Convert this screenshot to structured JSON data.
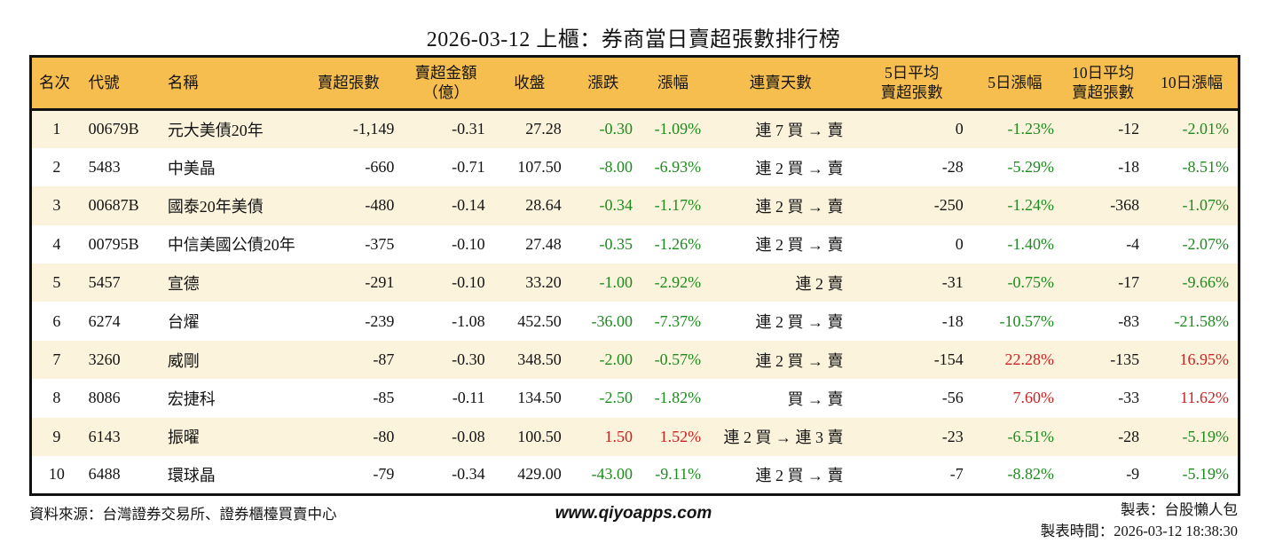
{
  "title": "2026-03-12 上櫃：券商當日賣超張數排行榜",
  "colors": {
    "header_bg": "#F6BE4E",
    "row_stripe": "#FCF3DC",
    "up_red": "#CC2222",
    "down_green": "#1E8B1E",
    "border": "#111111"
  },
  "table": {
    "headers": [
      "名次",
      "代號",
      "名稱",
      "賣超張數",
      "賣超金額\n（億）",
      "收盤",
      "漲跌",
      "漲幅",
      "連賣天數",
      "5日平均\n賣超張數",
      "5日漲幅",
      "10日平均\n賣超張數",
      "10日漲幅"
    ],
    "rows": [
      {
        "rank": "1",
        "code": "00679B",
        "name": "元大美債20年",
        "net_sell": "-1,149",
        "amount": "-0.31",
        "close": "27.28",
        "change": "-0.30",
        "change_pct": "-1.09%",
        "chg_dir": "down",
        "streak": "連 7 買 → 賣",
        "avg5": "0",
        "pct5": "-1.23%",
        "d5_dir": "down",
        "avg10": "-12",
        "pct10": "-2.01%",
        "d10_dir": "down"
      },
      {
        "rank": "2",
        "code": "5483",
        "name": "中美晶",
        "net_sell": "-660",
        "amount": "-0.71",
        "close": "107.50",
        "change": "-8.00",
        "change_pct": "-6.93%",
        "chg_dir": "down",
        "streak": "連 2 買 → 賣",
        "avg5": "-28",
        "pct5": "-5.29%",
        "d5_dir": "down",
        "avg10": "-18",
        "pct10": "-8.51%",
        "d10_dir": "down"
      },
      {
        "rank": "3",
        "code": "00687B",
        "name": "國泰20年美債",
        "net_sell": "-480",
        "amount": "-0.14",
        "close": "28.64",
        "change": "-0.34",
        "change_pct": "-1.17%",
        "chg_dir": "down",
        "streak": "連 2 買 → 賣",
        "avg5": "-250",
        "pct5": "-1.24%",
        "d5_dir": "down",
        "avg10": "-368",
        "pct10": "-1.07%",
        "d10_dir": "down"
      },
      {
        "rank": "4",
        "code": "00795B",
        "name": "中信美國公債20年",
        "net_sell": "-375",
        "amount": "-0.10",
        "close": "27.48",
        "change": "-0.35",
        "change_pct": "-1.26%",
        "chg_dir": "down",
        "streak": "連 2 買 → 賣",
        "avg5": "0",
        "pct5": "-1.40%",
        "d5_dir": "down",
        "avg10": "-4",
        "pct10": "-2.07%",
        "d10_dir": "down"
      },
      {
        "rank": "5",
        "code": "5457",
        "name": "宣德",
        "net_sell": "-291",
        "amount": "-0.10",
        "close": "33.20",
        "change": "-1.00",
        "change_pct": "-2.92%",
        "chg_dir": "down",
        "streak": "連 2 賣",
        "avg5": "-31",
        "pct5": "-0.75%",
        "d5_dir": "down",
        "avg10": "-17",
        "pct10": "-9.66%",
        "d10_dir": "down"
      },
      {
        "rank": "6",
        "code": "6274",
        "name": "台燿",
        "net_sell": "-239",
        "amount": "-1.08",
        "close": "452.50",
        "change": "-36.00",
        "change_pct": "-7.37%",
        "chg_dir": "down",
        "streak": "連 2 買 → 賣",
        "avg5": "-18",
        "pct5": "-10.57%",
        "d5_dir": "down",
        "avg10": "-83",
        "pct10": "-21.58%",
        "d10_dir": "down"
      },
      {
        "rank": "7",
        "code": "3260",
        "name": "威剛",
        "net_sell": "-87",
        "amount": "-0.30",
        "close": "348.50",
        "change": "-2.00",
        "change_pct": "-0.57%",
        "chg_dir": "down",
        "streak": "連 2 買 → 賣",
        "avg5": "-154",
        "pct5": "22.28%",
        "d5_dir": "up",
        "avg10": "-135",
        "pct10": "16.95%",
        "d10_dir": "up"
      },
      {
        "rank": "8",
        "code": "8086",
        "name": "宏捷科",
        "net_sell": "-85",
        "amount": "-0.11",
        "close": "134.50",
        "change": "-2.50",
        "change_pct": "-1.82%",
        "chg_dir": "down",
        "streak": "買 → 賣",
        "avg5": "-56",
        "pct5": "7.60%",
        "d5_dir": "up",
        "avg10": "-33",
        "pct10": "11.62%",
        "d10_dir": "up"
      },
      {
        "rank": "9",
        "code": "6143",
        "name": "振曜",
        "net_sell": "-80",
        "amount": "-0.08",
        "close": "100.50",
        "change": "1.50",
        "change_pct": "1.52%",
        "chg_dir": "up",
        "streak": "連 2 買 → 連 3 賣",
        "avg5": "-23",
        "pct5": "-6.51%",
        "d5_dir": "down",
        "avg10": "-28",
        "pct10": "-5.19%",
        "d10_dir": "down"
      },
      {
        "rank": "10",
        "code": "6488",
        "name": "環球晶",
        "net_sell": "-79",
        "amount": "-0.34",
        "close": "429.00",
        "change": "-43.00",
        "change_pct": "-9.11%",
        "chg_dir": "down",
        "streak": "連 2 買 → 賣",
        "avg5": "-7",
        "pct5": "-8.82%",
        "d5_dir": "down",
        "avg10": "-9",
        "pct10": "-5.19%",
        "d10_dir": "down"
      }
    ]
  },
  "footer": {
    "source": "資料來源：台灣證券交易所、證券櫃檯買賣中心",
    "website": "www.qiyoapps.com",
    "author": "製表：台股懶人包",
    "timestamp": "製表時間：2026-03-12 18:38:30"
  }
}
